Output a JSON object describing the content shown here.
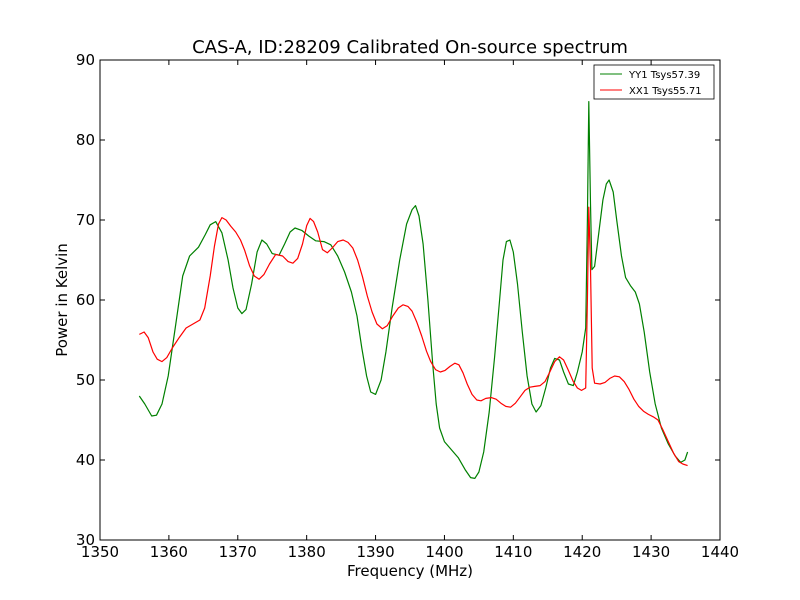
{
  "chart_data": {
    "type": "line",
    "title": "CAS-A, ID:28209 Calibrated On-source spectrum",
    "xlabel": "Frequency (MHz)",
    "ylabel": "Power in Kelvin",
    "xlim": [
      1350,
      1440
    ],
    "ylim": [
      30,
      90
    ],
    "xticks": [
      1350,
      1360,
      1370,
      1380,
      1390,
      1400,
      1410,
      1420,
      1430,
      1440
    ],
    "yticks": [
      30,
      40,
      50,
      60,
      70,
      80,
      90
    ],
    "grid": false,
    "legend_position": "top-right",
    "series": [
      {
        "name": "YY1 Tsys57.39",
        "color": "#008000",
        "points": [
          [
            1355.7,
            48.0
          ],
          [
            1356.5,
            47.0
          ],
          [
            1357.5,
            45.5
          ],
          [
            1358.2,
            45.6
          ],
          [
            1359.0,
            47.0
          ],
          [
            1359.9,
            50.5
          ],
          [
            1361.0,
            57.0
          ],
          [
            1362.0,
            63.0
          ],
          [
            1363.0,
            65.5
          ],
          [
            1364.3,
            66.6
          ],
          [
            1365.3,
            68.2
          ],
          [
            1366.0,
            69.4
          ],
          [
            1366.8,
            69.8
          ],
          [
            1367.7,
            68.4
          ],
          [
            1368.6,
            65.0
          ],
          [
            1369.3,
            61.5
          ],
          [
            1370.0,
            59.0
          ],
          [
            1370.6,
            58.3
          ],
          [
            1371.2,
            58.8
          ],
          [
            1372.0,
            62.0
          ],
          [
            1372.8,
            66.0
          ],
          [
            1373.5,
            67.5
          ],
          [
            1374.2,
            67.0
          ],
          [
            1375.0,
            65.8
          ],
          [
            1376.0,
            65.6
          ],
          [
            1376.8,
            67.0
          ],
          [
            1377.6,
            68.5
          ],
          [
            1378.3,
            69.0
          ],
          [
            1379.3,
            68.7
          ],
          [
            1380.3,
            68.0
          ],
          [
            1381.3,
            67.4
          ],
          [
            1382.5,
            67.3
          ],
          [
            1383.5,
            66.9
          ],
          [
            1384.5,
            65.5
          ],
          [
            1385.5,
            63.5
          ],
          [
            1386.5,
            61.0
          ],
          [
            1387.3,
            58.0
          ],
          [
            1388.0,
            54.0
          ],
          [
            1388.7,
            50.5
          ],
          [
            1389.3,
            48.5
          ],
          [
            1390.0,
            48.2
          ],
          [
            1390.8,
            50.0
          ],
          [
            1391.5,
            53.5
          ],
          [
            1392.4,
            59.0
          ],
          [
            1393.5,
            65.0
          ],
          [
            1394.5,
            69.5
          ],
          [
            1395.3,
            71.3
          ],
          [
            1395.8,
            71.8
          ],
          [
            1396.3,
            70.5
          ],
          [
            1396.9,
            67.0
          ],
          [
            1397.6,
            60.0
          ],
          [
            1398.3,
            52.0
          ],
          [
            1398.8,
            47.0
          ],
          [
            1399.3,
            44.0
          ],
          [
            1400.0,
            42.3
          ],
          [
            1401.0,
            41.3
          ],
          [
            1402.0,
            40.3
          ],
          [
            1403.0,
            38.8
          ],
          [
            1403.8,
            37.8
          ],
          [
            1404.4,
            37.7
          ],
          [
            1405.0,
            38.5
          ],
          [
            1405.7,
            41.0
          ],
          [
            1406.5,
            46.0
          ],
          [
            1407.3,
            53.0
          ],
          [
            1408.0,
            60.0
          ],
          [
            1408.5,
            65.0
          ],
          [
            1409.0,
            67.3
          ],
          [
            1409.5,
            67.5
          ],
          [
            1410.0,
            66.0
          ],
          [
            1410.6,
            62.0
          ],
          [
            1411.3,
            56.0
          ],
          [
            1412.0,
            50.5
          ],
          [
            1412.7,
            47.0
          ],
          [
            1413.3,
            46.0
          ],
          [
            1414.0,
            46.8
          ],
          [
            1414.7,
            49.0
          ],
          [
            1415.4,
            51.5
          ],
          [
            1416.0,
            52.7
          ],
          [
            1416.7,
            52.5
          ],
          [
            1417.3,
            51.0
          ],
          [
            1418.0,
            49.5
          ],
          [
            1418.7,
            49.3
          ],
          [
            1419.3,
            51.0
          ],
          [
            1420.0,
            53.5
          ],
          [
            1420.5,
            56.5
          ],
          [
            1420.75,
            70.0
          ],
          [
            1420.95,
            84.8
          ],
          [
            1421.2,
            72.0
          ],
          [
            1421.4,
            63.8
          ],
          [
            1421.8,
            64.2
          ],
          [
            1422.5,
            69.0
          ],
          [
            1423.0,
            72.5
          ],
          [
            1423.5,
            74.5
          ],
          [
            1423.9,
            75.0
          ],
          [
            1424.5,
            73.5
          ],
          [
            1425.0,
            70.0
          ],
          [
            1425.7,
            65.5
          ],
          [
            1426.3,
            62.8
          ],
          [
            1427.0,
            61.8
          ],
          [
            1427.7,
            61.0
          ],
          [
            1428.3,
            59.5
          ],
          [
            1429.0,
            56.0
          ],
          [
            1429.8,
            51.0
          ],
          [
            1430.6,
            47.0
          ],
          [
            1431.5,
            44.0
          ],
          [
            1432.5,
            42.0
          ],
          [
            1433.5,
            40.5
          ],
          [
            1434.3,
            39.7
          ],
          [
            1434.9,
            40.0
          ],
          [
            1435.3,
            41.0
          ]
        ]
      },
      {
        "name": "XX1 Tsys55.71",
        "color": "#ff0000",
        "points": [
          [
            1355.7,
            55.7
          ],
          [
            1356.4,
            56.0
          ],
          [
            1357.0,
            55.3
          ],
          [
            1357.7,
            53.5
          ],
          [
            1358.3,
            52.6
          ],
          [
            1359.0,
            52.3
          ],
          [
            1359.7,
            52.8
          ],
          [
            1360.5,
            54.0
          ],
          [
            1361.5,
            55.3
          ],
          [
            1362.5,
            56.5
          ],
          [
            1363.5,
            57.0
          ],
          [
            1364.5,
            57.5
          ],
          [
            1365.2,
            59.0
          ],
          [
            1366.0,
            63.0
          ],
          [
            1366.6,
            66.7
          ],
          [
            1367.2,
            69.5
          ],
          [
            1367.7,
            70.3
          ],
          [
            1368.3,
            70.0
          ],
          [
            1369.0,
            69.2
          ],
          [
            1369.7,
            68.5
          ],
          [
            1370.4,
            67.5
          ],
          [
            1371.0,
            66.2
          ],
          [
            1371.7,
            64.3
          ],
          [
            1372.4,
            63.0
          ],
          [
            1373.1,
            62.6
          ],
          [
            1373.8,
            63.2
          ],
          [
            1374.6,
            64.5
          ],
          [
            1375.5,
            65.7
          ],
          [
            1376.5,
            65.5
          ],
          [
            1377.3,
            64.8
          ],
          [
            1378.0,
            64.6
          ],
          [
            1378.7,
            65.2
          ],
          [
            1379.4,
            67.0
          ],
          [
            1380.0,
            69.3
          ],
          [
            1380.5,
            70.2
          ],
          [
            1381.0,
            69.8
          ],
          [
            1381.6,
            68.5
          ],
          [
            1382.3,
            66.3
          ],
          [
            1383.0,
            65.9
          ],
          [
            1383.7,
            66.5
          ],
          [
            1384.5,
            67.3
          ],
          [
            1385.3,
            67.5
          ],
          [
            1386.0,
            67.2
          ],
          [
            1386.7,
            66.5
          ],
          [
            1387.4,
            65.0
          ],
          [
            1388.1,
            62.9
          ],
          [
            1388.8,
            60.5
          ],
          [
            1389.5,
            58.5
          ],
          [
            1390.2,
            57.0
          ],
          [
            1391.0,
            56.4
          ],
          [
            1391.7,
            56.8
          ],
          [
            1392.5,
            58.0
          ],
          [
            1393.3,
            59.0
          ],
          [
            1394.0,
            59.4
          ],
          [
            1394.7,
            59.2
          ],
          [
            1395.3,
            58.6
          ],
          [
            1396.0,
            57.2
          ],
          [
            1396.7,
            55.5
          ],
          [
            1397.4,
            53.6
          ],
          [
            1398.0,
            52.3
          ],
          [
            1398.7,
            51.3
          ],
          [
            1399.4,
            51.0
          ],
          [
            1400.1,
            51.2
          ],
          [
            1400.8,
            51.7
          ],
          [
            1401.5,
            52.1
          ],
          [
            1402.1,
            51.9
          ],
          [
            1402.7,
            50.9
          ],
          [
            1403.3,
            49.5
          ],
          [
            1404.0,
            48.2
          ],
          [
            1404.7,
            47.5
          ],
          [
            1405.3,
            47.4
          ],
          [
            1406.0,
            47.7
          ],
          [
            1406.8,
            47.8
          ],
          [
            1407.5,
            47.6
          ],
          [
            1408.2,
            47.1
          ],
          [
            1408.9,
            46.7
          ],
          [
            1409.6,
            46.6
          ],
          [
            1410.3,
            47.1
          ],
          [
            1411.0,
            47.9
          ],
          [
            1411.7,
            48.7
          ],
          [
            1412.4,
            49.1
          ],
          [
            1413.1,
            49.2
          ],
          [
            1413.9,
            49.3
          ],
          [
            1414.6,
            49.8
          ],
          [
            1415.3,
            51.0
          ],
          [
            1416.0,
            52.3
          ],
          [
            1416.7,
            52.9
          ],
          [
            1417.3,
            52.5
          ],
          [
            1418.0,
            51.2
          ],
          [
            1418.7,
            49.8
          ],
          [
            1419.3,
            49.0
          ],
          [
            1419.9,
            48.7
          ],
          [
            1420.5,
            49.0
          ],
          [
            1420.75,
            60.0
          ],
          [
            1420.95,
            71.6
          ],
          [
            1421.2,
            64.0
          ],
          [
            1421.45,
            51.5
          ],
          [
            1421.8,
            49.6
          ],
          [
            1422.6,
            49.5
          ],
          [
            1423.3,
            49.7
          ],
          [
            1424.0,
            50.2
          ],
          [
            1424.7,
            50.5
          ],
          [
            1425.4,
            50.4
          ],
          [
            1426.1,
            49.8
          ],
          [
            1426.8,
            48.8
          ],
          [
            1427.5,
            47.6
          ],
          [
            1428.2,
            46.7
          ],
          [
            1428.9,
            46.1
          ],
          [
            1429.6,
            45.7
          ],
          [
            1430.3,
            45.4
          ],
          [
            1431.0,
            45.0
          ],
          [
            1431.7,
            43.8
          ],
          [
            1432.5,
            42.3
          ],
          [
            1433.3,
            40.8
          ],
          [
            1434.0,
            39.8
          ],
          [
            1434.6,
            39.5
          ],
          [
            1435.3,
            39.3
          ]
        ]
      }
    ]
  }
}
